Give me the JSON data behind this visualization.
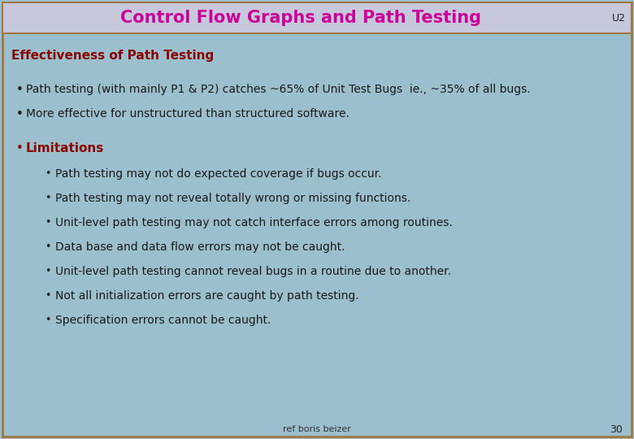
{
  "title": "Control Flow Graphs and Path Testing",
  "unit_label": "U2",
  "title_color": "#CC0099",
  "title_bg_color": "#C8C8DC",
  "content_bg_color": "#9BBFCC",
  "border_color": "#A07840",
  "section_title": "Effectiveness of Path Testing",
  "section_title_color": "#8B0000",
  "text_color": "#1a1a1a",
  "page_number": "30",
  "ref_text": "ref boris beizer",
  "main_bullets": [
    "Path testing (with mainly P1 & P2) catches ~65% of Unit Test Bugs  ie., ~35% of all bugs.",
    "More effective for unstructured than structured software."
  ],
  "limitations_label": "Limitations",
  "sub_bullets": [
    "Path testing may not do expected coverage if bugs occur.",
    "Path testing may not reveal totally wrong or missing functions.",
    "Unit-level path testing may not catch interface errors among routines.",
    "Data base and data flow errors may not be caught.",
    "Unit-level path testing cannot reveal bugs in a routine due to another.",
    "Not all initialization errors are caught by path testing.",
    "Specification errors cannot be caught."
  ],
  "title_bar_height": 38,
  "figw": 7.8,
  "figh": 5.4,
  "dpi": 100
}
